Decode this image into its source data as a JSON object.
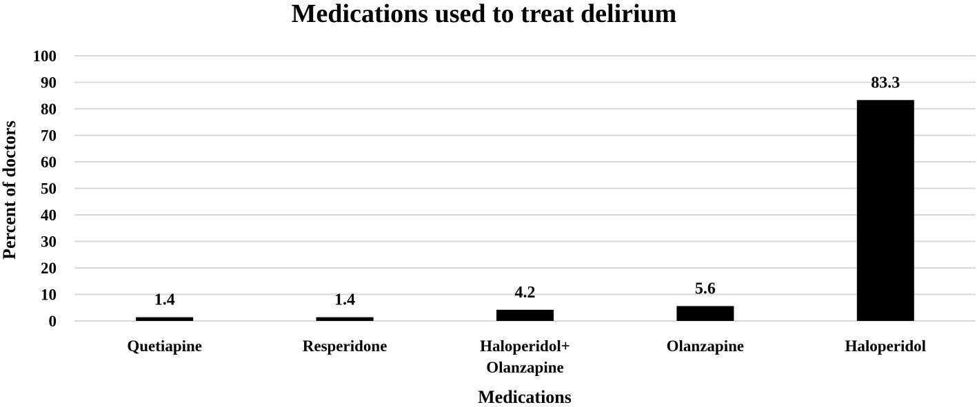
{
  "chart_data": {
    "type": "bar",
    "title": "Medications used to treat delirium",
    "xlabel": "Medications",
    "ylabel": "Percent of doctors",
    "categories": [
      [
        "Quetiapine"
      ],
      [
        "Resperidone"
      ],
      [
        "Haloperidol+",
        "Olanzapine"
      ],
      [
        "Olanzapine"
      ],
      [
        "Haloperidol"
      ]
    ],
    "values": [
      1.4,
      1.4,
      4.2,
      5.6,
      83.3
    ],
    "data_labels": [
      "1.4",
      "1.4",
      "4.2",
      "5.6",
      "83.3"
    ],
    "ylim": [
      0,
      100
    ],
    "yticks": [
      0,
      10,
      20,
      30,
      40,
      50,
      60,
      70,
      80,
      90,
      100
    ],
    "grid": true,
    "legend": "none",
    "bar_color": "#000000",
    "grid_color": "#d9d9d9"
  }
}
